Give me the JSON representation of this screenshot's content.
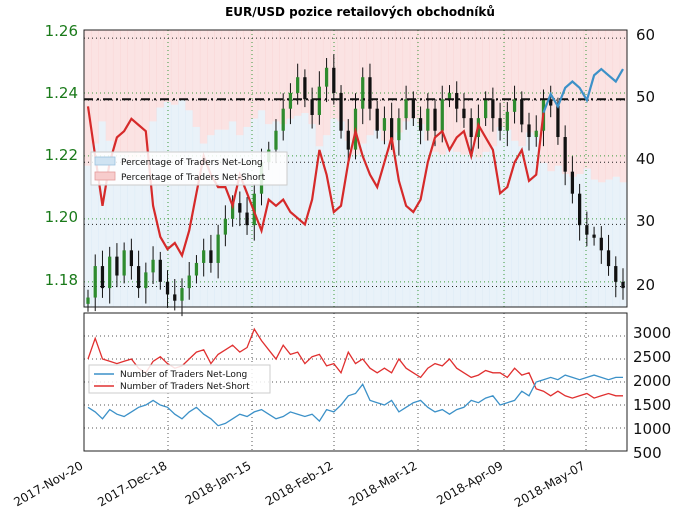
{
  "chart_data": [
    {
      "type": "line",
      "title": "EUR/USD pozice retailových obchodníků",
      "left_axis": {
        "ylim": [
          1.172,
          1.26
        ],
        "ticks": [
          "1.26",
          "1.24",
          "1.22",
          "1.20",
          "1.18"
        ]
      },
      "right_axis": {
        "ylim": [
          16.7,
          61.3
        ],
        "ticks": [
          "60",
          "50",
          "40",
          "30",
          "20"
        ]
      },
      "x_ticks": [
        "2017-Nov-20",
        "2017-Dec-18",
        "2018-Jan-15",
        "2018-Feb-12",
        "2018-Mar-12",
        "2018-Apr-09",
        "2018-May-07"
      ],
      "legend": {
        "position": "left-middle",
        "entries": [
          "Percentage of Traders Net-Long",
          "Percentage of Traders Net-Short"
        ]
      },
      "horizontal_line": 1.238,
      "grid": true,
      "colors": {
        "price_candles": "#111111",
        "up_candle": "#2e8b2e",
        "net_long_fill": "#cfe3f2",
        "net_short_fill": "#f7cccc",
        "net_short_line": "#d62a2a",
        "net_long_line": "#3c91c8",
        "left_axis_text": "#1a7a1a"
      },
      "series": [
        {
          "values": [
            1.175,
            1.185,
            1.178,
            1.188,
            1.182,
            1.19,
            1.185,
            1.178,
            1.183,
            1.187,
            1.18,
            1.176,
            1.174,
            1.178,
            1.182,
            1.186,
            1.19,
            1.186,
            1.195,
            1.2,
            1.205,
            1.202,
            1.198,
            1.208,
            1.218,
            1.222,
            1.228,
            1.235,
            1.24,
            1.245,
            1.238,
            1.233,
            1.242,
            1.248,
            1.24,
            1.228,
            1.222,
            1.235,
            1.245,
            1.235,
            1.228,
            1.232,
            1.225,
            1.232,
            1.238,
            1.232,
            1.228,
            1.235,
            1.228,
            1.238,
            1.24,
            1.235,
            1.232,
            1.226,
            1.232,
            1.238,
            1.232,
            1.228,
            1.234,
            1.238,
            1.23,
            1.226,
            1.228,
            1.238,
            1.236,
            1.226,
            1.215,
            1.208,
            1.198,
            1.195,
            1.194,
            1.19,
            1.185,
            1.18,
            1.178
          ]
        },
        {
          "values": [
            49.0,
            41.0,
            33.0,
            40.0,
            44.0,
            45.0,
            47.0,
            46.0,
            45.0,
            33.0,
            28.0,
            26.0,
            27.0,
            25.0,
            29.0,
            35.0,
            41.0,
            38.0,
            36.0,
            36.0,
            33.0,
            38.0,
            35.0,
            32.0,
            29.0,
            34.0,
            33.0,
            34.0,
            32.0,
            31.0,
            30.0,
            34.0,
            42.0,
            38.0,
            32.0,
            33.0,
            40.0,
            45.0,
            41.0,
            38.0,
            36.0,
            40.0,
            44.0,
            37.0,
            33.0,
            32.0,
            34.0,
            40.0,
            44.0,
            45.0,
            42.0,
            44.0,
            45.0,
            41.0,
            46.0,
            44.0,
            42.0,
            35.0,
            36.0,
            40.0,
            42.0,
            37.0,
            38.0,
            48.0,
            51.0,
            49.0,
            52.0,
            53.0,
            52.0,
            50.0,
            54.0,
            55.0,
            54.0,
            53.0,
            55.0
          ]
        },
        {
          "values": [
            2500,
            2950,
            2500,
            2450,
            2400,
            2450,
            2500,
            2300,
            2200,
            2450,
            2550,
            2400,
            2300,
            2350,
            2500,
            2650,
            2700,
            2400,
            2600,
            2700,
            2800,
            2650,
            2750,
            3150,
            2900,
            2700,
            2500,
            2800,
            2600,
            2650,
            2400,
            2550,
            2600,
            2350,
            2400,
            2200,
            2650,
            2400,
            2500,
            2300,
            2200,
            2300,
            2200,
            2500,
            2300,
            2200,
            2100,
            2300,
            2400,
            2350,
            2500,
            2300,
            2200,
            2100,
            2150,
            2250,
            2200,
            2200,
            2100,
            2300,
            2150,
            2200,
            1850,
            1800,
            1700,
            1800,
            1700,
            1650,
            1700,
            1750,
            1650,
            1700,
            1750,
            1700,
            1700
          ]
        },
        {
          "values": [
            1450,
            1350,
            1200,
            1400,
            1300,
            1250,
            1350,
            1450,
            1500,
            1600,
            1500,
            1450,
            1300,
            1200,
            1350,
            1450,
            1300,
            1200,
            1050,
            1100,
            1200,
            1300,
            1250,
            1350,
            1400,
            1300,
            1200,
            1250,
            1350,
            1300,
            1250,
            1300,
            1150,
            1400,
            1350,
            1500,
            1700,
            1750,
            1950,
            1600,
            1550,
            1500,
            1600,
            1350,
            1450,
            1550,
            1600,
            1450,
            1350,
            1400,
            1300,
            1400,
            1450,
            1600,
            1550,
            1650,
            1700,
            1500,
            1550,
            1600,
            1800,
            1700,
            2000,
            2050,
            2100,
            2050,
            2150,
            2100,
            2050,
            2100,
            2150,
            2100,
            2050,
            2100,
            2100
          ]
        }
      ]
    },
    {
      "type": "line",
      "ylim": [
        500,
        3500
      ],
      "y_ticks": [
        "3000",
        "2500",
        "2000",
        "1500",
        "1000",
        "500"
      ],
      "legend": {
        "position": "left-middle",
        "entries": [
          "Number of Traders Net-Long",
          "Number of Traders Net-Short"
        ]
      },
      "grid": true
    }
  ]
}
